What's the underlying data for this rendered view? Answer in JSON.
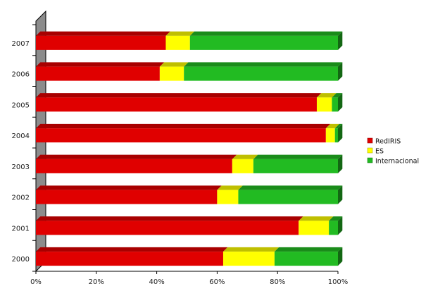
{
  "chart_data": {
    "type": "bar",
    "orientation": "horizontal",
    "stacked": "percent",
    "categories": [
      "2007",
      "2006",
      "2005",
      "2004",
      "2003",
      "2002",
      "2001",
      "2000"
    ],
    "series": [
      {
        "name": "RedIRIS",
        "color": "#e00000",
        "values": [
          43,
          41,
          93,
          96,
          65,
          60,
          87,
          62
        ]
      },
      {
        "name": "ES",
        "color": "#ffff00",
        "values": [
          8,
          8,
          5,
          3,
          7,
          7,
          10,
          17
        ]
      },
      {
        "name": "Internacional",
        "color": "#22bb22",
        "values": [
          49,
          51,
          2,
          1,
          28,
          33,
          3,
          21
        ]
      }
    ],
    "xlim": [
      0,
      100
    ],
    "xticks": [
      "0%",
      "20%",
      "40%",
      "60%",
      "80%",
      "100%"
    ],
    "title": "",
    "xlabel": "",
    "ylabel": "",
    "legend_position": "right",
    "grid": false
  }
}
